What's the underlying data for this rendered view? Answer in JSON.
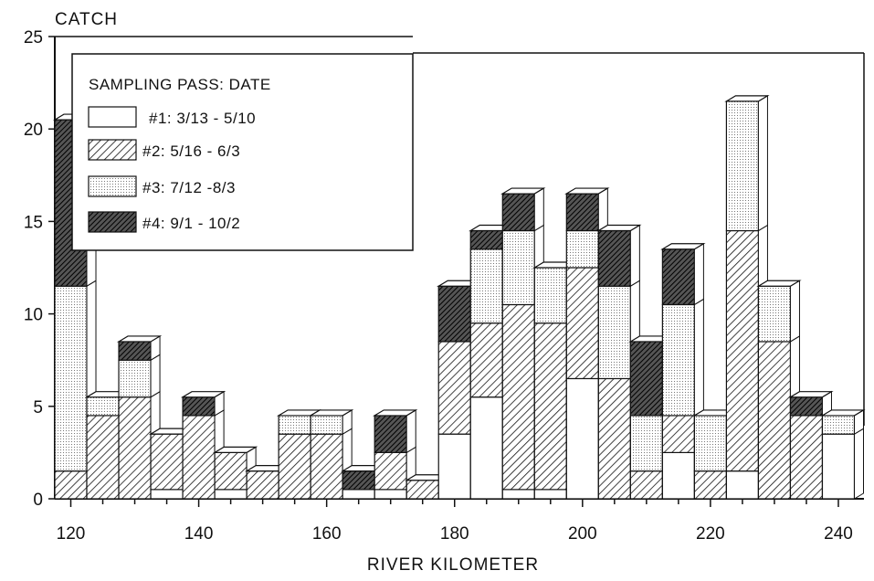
{
  "chart_data": {
    "type": "bar",
    "style": "stacked-3d",
    "y_axis_title": "CATCH",
    "x_axis_title": "RIVER  KILOMETER",
    "ylim": [
      0,
      25
    ],
    "xlim": [
      117.5,
      244
    ],
    "y_ticks": [
      0,
      5,
      10,
      15,
      20,
      25
    ],
    "x_ticks": [
      120,
      140,
      160,
      180,
      200,
      220,
      240
    ],
    "bin_width": 5,
    "legend": {
      "title": "SAMPLING PASS: DATE",
      "placement": "top-left"
    },
    "series": [
      {
        "name": "#1: 3/13 - 5/10",
        "pattern": "blank",
        "values": [
          0,
          0,
          0,
          0.5,
          0,
          0.5,
          0,
          0,
          0,
          0.5,
          0.5,
          0,
          3.5,
          5.5,
          0.5,
          0.5,
          6.5,
          0,
          0,
          2.5,
          0,
          1.5,
          0,
          0,
          3.5
        ]
      },
      {
        "name": "#2:  5/16 - 6/3",
        "pattern": "hatch",
        "values": [
          1.5,
          4.5,
          5.5,
          3,
          4.5,
          2,
          1.5,
          3.5,
          3.5,
          0,
          2,
          1,
          5,
          4,
          10,
          9,
          6,
          6.5,
          1.5,
          2,
          1.5,
          13,
          8.5,
          4.5,
          0
        ]
      },
      {
        "name": "#3:  7/12 -8/3",
        "pattern": "dots",
        "values": [
          10,
          1,
          2,
          0,
          0,
          0,
          0,
          1,
          1,
          0,
          0,
          0,
          0,
          4,
          4,
          3,
          2,
          5,
          3,
          6,
          3,
          7,
          3,
          0,
          1
        ]
      },
      {
        "name": "#4:  9/1 - 10/2",
        "pattern": "dense-hatch",
        "values": [
          9,
          0,
          1,
          0,
          1,
          0,
          0,
          0,
          0,
          1,
          2,
          0,
          3,
          1,
          2,
          0,
          2,
          3,
          4,
          3,
          0,
          0,
          0,
          1,
          0
        ]
      }
    ],
    "bin_starts": [
      117.5,
      122.5,
      127.5,
      132.5,
      137.5,
      142.5,
      147.5,
      152.5,
      157.5,
      162.5,
      167.5,
      172.5,
      177.5,
      182.5,
      187.5,
      192.5,
      197.5,
      202.5,
      207.5,
      212.5,
      217.5,
      222.5,
      227.5,
      232.5,
      237.5
    ]
  }
}
